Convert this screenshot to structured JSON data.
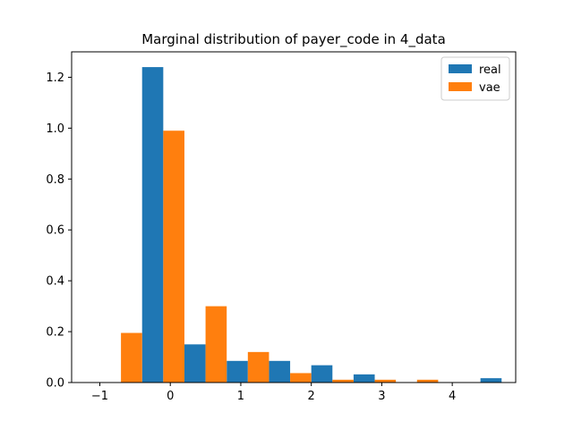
{
  "chart_data": {
    "type": "bar",
    "title": "Marginal distribution of payer_code in 4_data",
    "xlabel": "",
    "ylabel": "",
    "xlim": [
      -1.4,
      4.9
    ],
    "ylim": [
      0,
      1.3
    ],
    "xticks": [
      -1,
      0,
      1,
      2,
      3,
      4
    ],
    "xtick_labels": [
      "−1",
      "0",
      "1",
      "2",
      "3",
      "4"
    ],
    "yticks": [
      0.0,
      0.2,
      0.4,
      0.6,
      0.8,
      1.0,
      1.2
    ],
    "ytick_labels": [
      "0.0",
      "0.2",
      "0.4",
      "0.6",
      "0.8",
      "1.0",
      "1.2"
    ],
    "bin_edges": [
      -1.0,
      -0.4,
      0.2,
      0.8,
      1.4,
      2.0,
      2.6,
      3.2,
      3.8,
      4.4,
      5.0
    ],
    "legend_position": "top-right",
    "series": [
      {
        "name": "real",
        "color": "#1f77b4",
        "values": [
          0.0,
          1.24,
          0.15,
          0.085,
          0.085,
          0.068,
          0.032,
          0.0,
          0.0,
          0.017
        ]
      },
      {
        "name": "vae",
        "color": "#ff7f0e",
        "values": [
          0.195,
          0.99,
          0.3,
          0.12,
          0.037,
          0.011,
          0.011,
          0.011,
          0.0,
          0.0
        ]
      }
    ]
  }
}
